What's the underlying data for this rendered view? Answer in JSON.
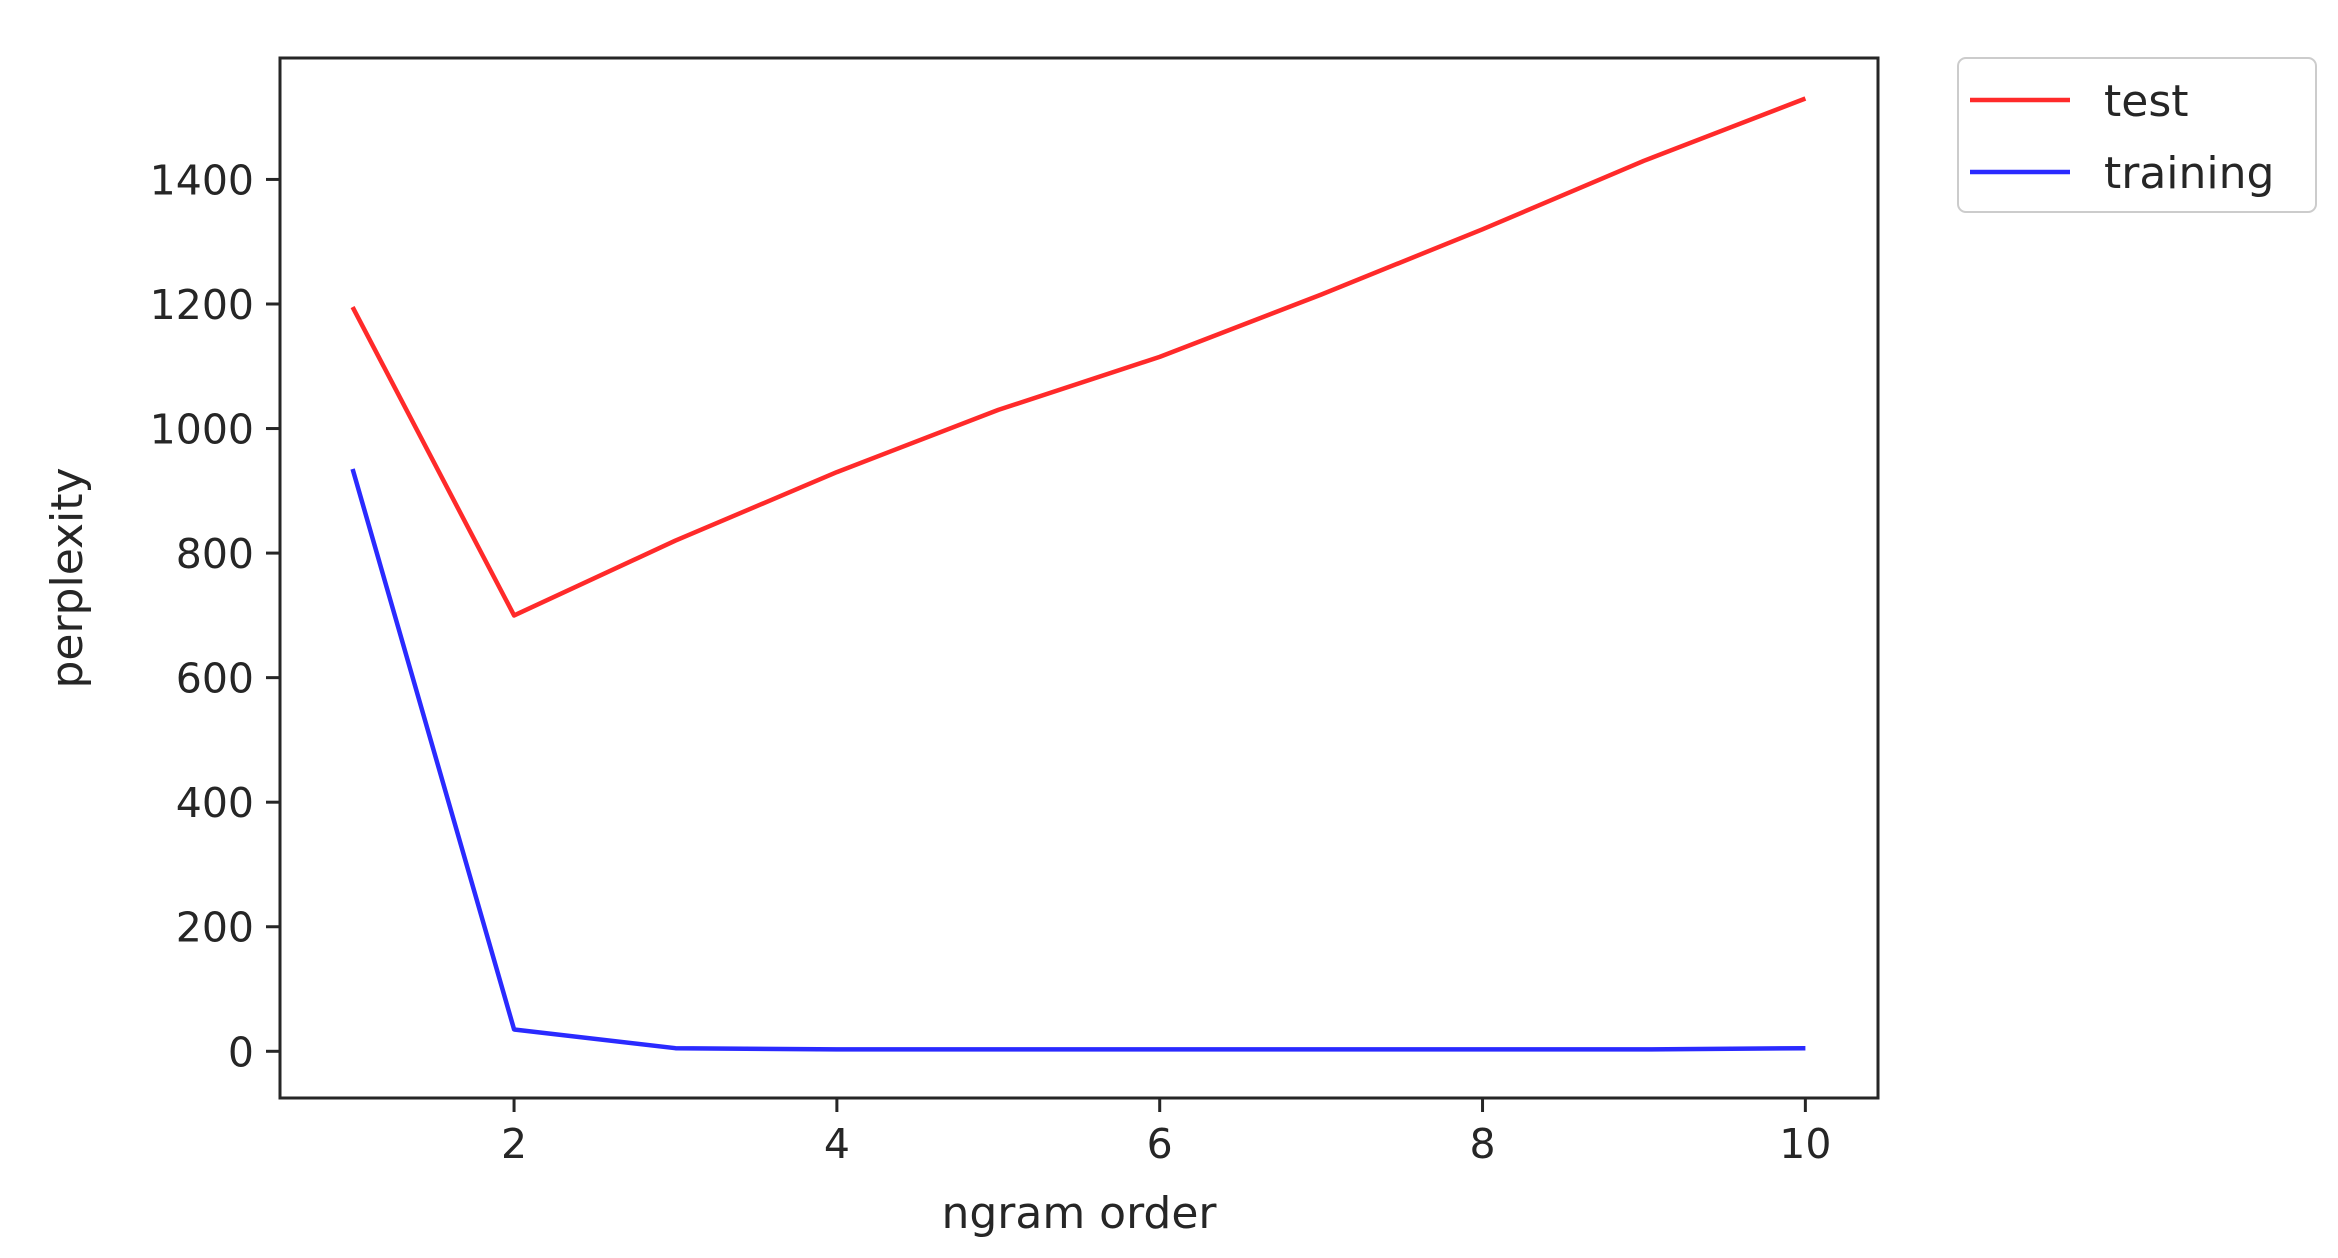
{
  "chart_data": {
    "type": "line",
    "title": "",
    "xlabel": "ngram order",
    "ylabel": "perplexity",
    "x": [
      1,
      2,
      3,
      4,
      5,
      6,
      7,
      8,
      9,
      10
    ],
    "xlim": [
      0.55,
      10.45
    ],
    "ylim": [
      -75,
      1595
    ],
    "xticks": [
      2,
      4,
      6,
      8,
      10
    ],
    "yticks": [
      0,
      200,
      400,
      600,
      800,
      1000,
      1200,
      1400
    ],
    "grid": false,
    "legend_position": "outside-top-right",
    "series": [
      {
        "name": "test",
        "color": "#ff2a2a",
        "values": [
          1195,
          700,
          820,
          930,
          1030,
          1115,
          1215,
          1320,
          1430,
          1530
        ]
      },
      {
        "name": "training",
        "color": "#2a2aff",
        "values": [
          935,
          35,
          5,
          3,
          3,
          3,
          3,
          3,
          3,
          5
        ]
      }
    ]
  }
}
